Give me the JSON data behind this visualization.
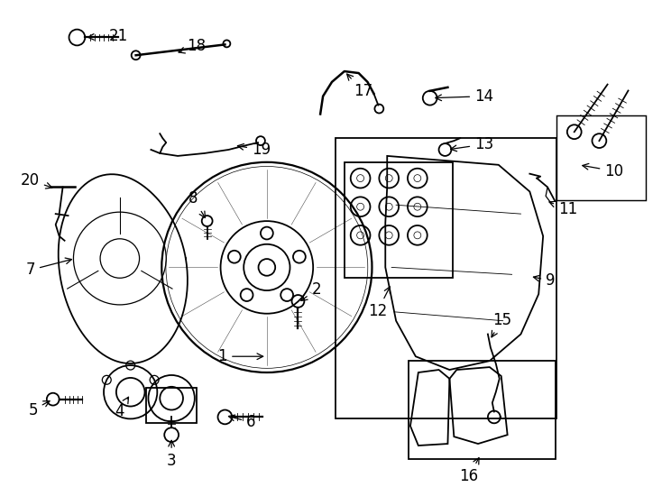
{
  "bg_color": "#ffffff",
  "line_color": "#000000",
  "lw": 1.3,
  "font_size": 12
}
